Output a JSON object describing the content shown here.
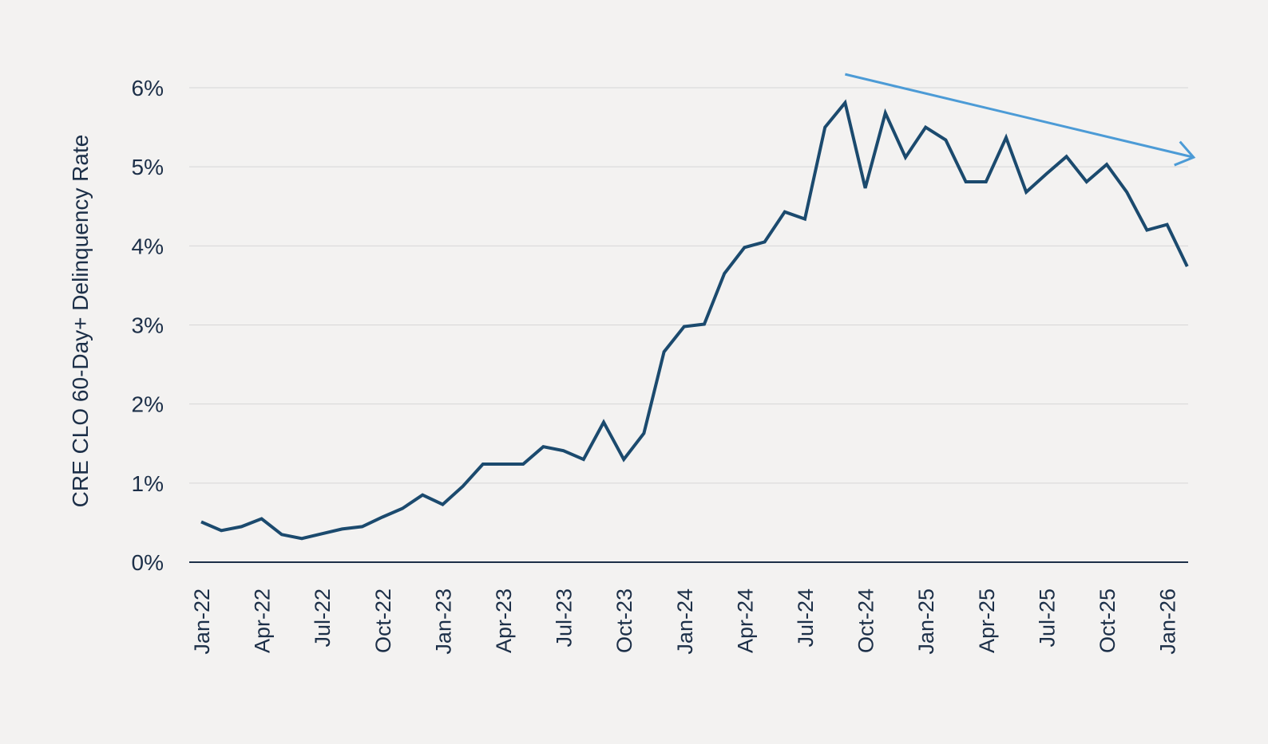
{
  "chart_data": {
    "type": "line",
    "title": "",
    "xlabel": "",
    "ylabel": "CRE CLO 60-Day+ Delinquency Rate",
    "ylim": [
      0,
      6
    ],
    "y_ticks": [
      "0%",
      "1%",
      "2%",
      "3%",
      "4%",
      "5%",
      "6%"
    ],
    "x_tick_labels": [
      "Jan-22",
      "Apr-22",
      "Jul-22",
      "Oct-22",
      "Jan-23",
      "Apr-23",
      "Jul-23",
      "Oct-23",
      "Jan-24",
      "Apr-24",
      "Jul-24",
      "Oct-24",
      "Jan-25",
      "Apr-25",
      "Jul-25",
      "Oct-25",
      "Jan-26"
    ],
    "grid": true,
    "legend": "none",
    "colors": {
      "series": "#1b4a6e",
      "trend_arrow": "#4c9bd6",
      "text": "#1c2f48",
      "grid": "#d6d6d6",
      "background": "#f3f2f1"
    },
    "series": [
      {
        "x": [
          "Jan-22",
          "Feb-22",
          "Mar-22",
          "Apr-22",
          "May-22",
          "Jun-22",
          "Jul-22",
          "Aug-22",
          "Sep-22",
          "Oct-22",
          "Nov-22",
          "Dec-22",
          "Jan-23",
          "Feb-23",
          "Mar-23",
          "Apr-23",
          "May-23",
          "Jun-23",
          "Jul-23",
          "Aug-23",
          "Sep-23",
          "Oct-23",
          "Nov-23",
          "Dec-23",
          "Jan-24",
          "Feb-24",
          "Mar-24",
          "Apr-24",
          "May-24",
          "Jun-24",
          "Jul-24",
          "Aug-24",
          "Sep-24",
          "Oct-24",
          "Nov-24",
          "Dec-24",
          "Jan-25",
          "Feb-25",
          "Mar-25",
          "Apr-25",
          "May-25",
          "Jun-25",
          "Jul-25",
          "Aug-25",
          "Sep-25",
          "Oct-25",
          "Nov-25",
          "Dec-25",
          "Jan-26",
          "Feb-26"
        ],
        "values": [
          0.51,
          0.4,
          0.45,
          0.55,
          0.35,
          0.3,
          0.36,
          0.42,
          0.45,
          0.57,
          0.68,
          0.85,
          0.73,
          0.96,
          1.24,
          1.24,
          1.24,
          1.46,
          1.41,
          1.3,
          1.77,
          1.3,
          1.63,
          2.66,
          2.98,
          3.01,
          3.65,
          3.98,
          4.05,
          4.43,
          4.34,
          5.5,
          5.81,
          4.73,
          5.68,
          5.12,
          5.5,
          5.34,
          4.81,
          4.81,
          5.37,
          4.68,
          4.91,
          5.13,
          4.81,
          5.03,
          4.68,
          4.2,
          4.27,
          3.74
        ]
      }
    ],
    "annotations": [
      {
        "type": "trend-arrow",
        "from": {
          "x": "Sep-24",
          "y": 6.17
        },
        "to": {
          "x": "Feb-26",
          "y": 5.12
        }
      }
    ]
  }
}
